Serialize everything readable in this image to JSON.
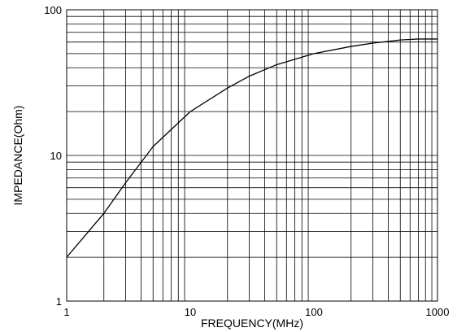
{
  "chart_data": {
    "type": "line",
    "title": "",
    "xlabel": "FREQUENCY(MHz)",
    "ylabel": "IMPEDANCE(Ohm)",
    "x_scale": "log",
    "y_scale": "log",
    "xlim": [
      1,
      1000
    ],
    "ylim": [
      1,
      100
    ],
    "grid": true,
    "x_ticks": [
      {
        "value": 1,
        "label": "1"
      },
      {
        "value": 10,
        "label": "10"
      },
      {
        "value": 100,
        "label": "100"
      },
      {
        "value": 1000,
        "label": "1000"
      }
    ],
    "y_ticks": [
      {
        "value": 1,
        "label": "1"
      },
      {
        "value": 10,
        "label": "10"
      },
      {
        "value": 100,
        "label": "100"
      }
    ],
    "series": [
      {
        "color": "#000000",
        "x": [
          1,
          2,
          3,
          5,
          10,
          20,
          30,
          50,
          100,
          200,
          300,
          500,
          700,
          1000
        ],
        "y": [
          2.0,
          4.0,
          6.5,
          11.5,
          20,
          29,
          35,
          42,
          50,
          56,
          59,
          62,
          63,
          63
        ]
      }
    ]
  }
}
